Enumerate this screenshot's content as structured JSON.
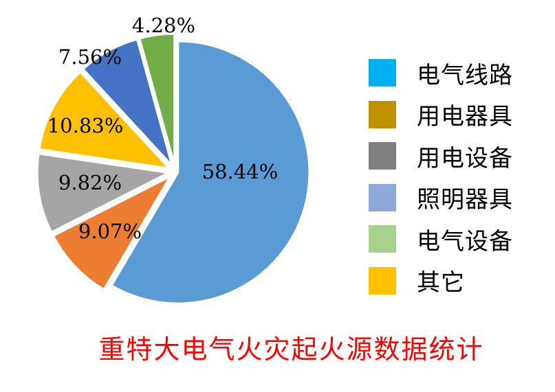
{
  "chart_data": {
    "type": "pie",
    "title": "重特大电气火灾起火源数据统计",
    "title_color": "#ff0000",
    "slices": [
      {
        "label": "电气线路",
        "value": 58.44,
        "value_label": "58.44%",
        "color": "#5b9bd5"
      },
      {
        "label": "用电器具",
        "value": 9.07,
        "value_label": "9.07%",
        "color": "#ed7d31"
      },
      {
        "label": "用电设备",
        "value": 9.82,
        "value_label": "9.82%",
        "color": "#a5a5a5"
      },
      {
        "label": "照明器具",
        "value": 10.83,
        "value_label": "10.83%",
        "color": "#ffc000"
      },
      {
        "label": "电气设备",
        "value": 7.56,
        "value_label": "7.56%",
        "color": "#4472c4"
      },
      {
        "label": "其它",
        "value": 4.28,
        "value_label": "4.28%",
        "color": "#70ad47"
      }
    ],
    "legend": {
      "placement": "right",
      "items": [
        {
          "label": "电气线路",
          "color": "#00b0f0"
        },
        {
          "label": "用电器具",
          "color": "#bf9000"
        },
        {
          "label": "用电设备",
          "color": "#7f7f7f"
        },
        {
          "label": "照明器具",
          "color": "#8eaadb"
        },
        {
          "label": "电气设备",
          "color": "#a9d18e"
        },
        {
          "label": "其它",
          "color": "#ffc000"
        }
      ]
    }
  }
}
